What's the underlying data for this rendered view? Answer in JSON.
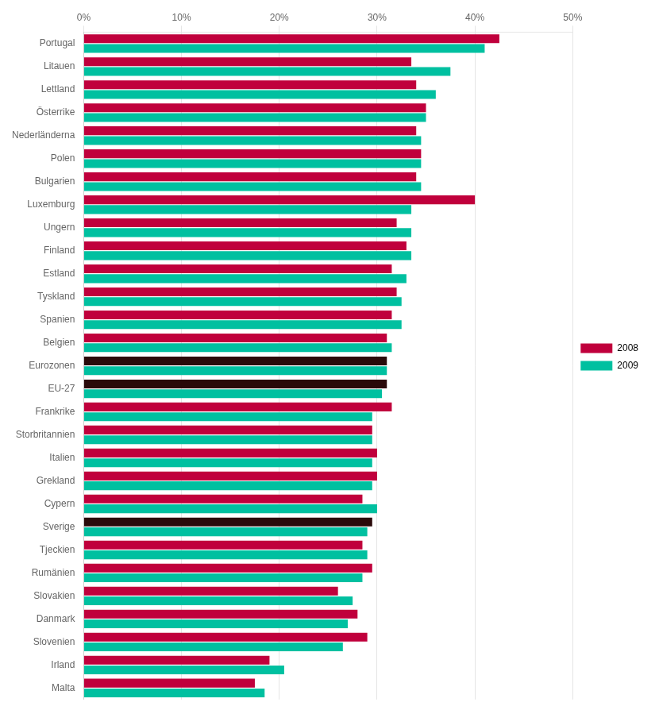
{
  "chart_data": {
    "type": "bar",
    "orientation": "horizontal",
    "categories": [
      "Portugal",
      "Litauen",
      "Lettland",
      "Österrike",
      "Nederländerna",
      "Polen",
      "Bulgarien",
      "Luxemburg",
      "Ungern",
      "Finland",
      "Estland",
      "Tyskland",
      "Spanien",
      "Belgien",
      "Eurozonen",
      "EU-27",
      "Frankrike",
      "Storbritannien",
      "Italien",
      "Grekland",
      "Cypern",
      "Sverige",
      "Tjeckien",
      "Rumänien",
      "Slovakien",
      "Danmark",
      "Slovenien",
      "Irland",
      "Malta"
    ],
    "series": [
      {
        "name": "2008",
        "color": "#C0003C",
        "colors": [
          "#C0003C",
          "#C0003C",
          "#C0003C",
          "#C0003C",
          "#C0003C",
          "#C0003C",
          "#C0003C",
          "#C0003C",
          "#C0003C",
          "#C0003C",
          "#C0003C",
          "#C0003C",
          "#C0003C",
          "#C0003C",
          "#2A0A0A",
          "#2A0A0A",
          "#C0003C",
          "#C0003C",
          "#C0003C",
          "#C0003C",
          "#C0003C",
          "#2A0A0A",
          "#C0003C",
          "#C0003C",
          "#C0003C",
          "#C0003C",
          "#C0003C",
          "#C0003C",
          "#C0003C"
        ],
        "values": [
          42.5,
          33.5,
          34.0,
          35.0,
          34.0,
          34.5,
          34.0,
          40.0,
          32.0,
          33.0,
          31.5,
          32.0,
          31.5,
          31.0,
          31.0,
          31.0,
          31.5,
          29.5,
          30.0,
          30.0,
          28.5,
          29.5,
          28.5,
          29.5,
          26.0,
          28.0,
          29.0,
          19.0,
          17.5
        ]
      },
      {
        "name": "2009",
        "color": "#00C0A0",
        "values": [
          41.0,
          37.5,
          36.0,
          35.0,
          34.5,
          34.5,
          34.5,
          33.5,
          33.5,
          33.5,
          33.0,
          32.5,
          32.5,
          31.5,
          31.0,
          30.5,
          29.5,
          29.5,
          29.5,
          29.5,
          30.0,
          29.0,
          29.0,
          28.5,
          27.5,
          27.0,
          26.5,
          20.5,
          18.5
        ]
      }
    ],
    "xlim": [
      0,
      50
    ],
    "xticks": [
      {
        "value": 0,
        "label": "0%"
      },
      {
        "value": 10,
        "label": "10%"
      },
      {
        "value": 20,
        "label": "20%"
      },
      {
        "value": 30,
        "label": "30%"
      },
      {
        "value": 40,
        "label": "40%"
      },
      {
        "value": 50,
        "label": "50%"
      }
    ],
    "grid": true,
    "legend": "right"
  }
}
